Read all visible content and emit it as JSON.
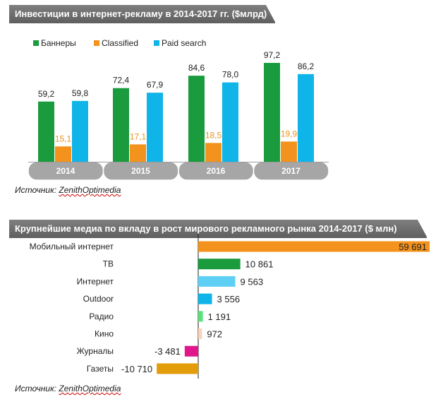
{
  "chart_data": [
    {
      "type": "bar",
      "title": "Инвестиции в интернет-рекламу в 2014-2017 гг. ($млрд)",
      "categories": [
        "2014",
        "2015",
        "2016",
        "2017"
      ],
      "series": [
        {
          "name": "Баннеры",
          "color": "#1a9b3d",
          "values": [
            59.2,
            72.4,
            84.6,
            97.2
          ],
          "labels": [
            "59,2",
            "72,4",
            "84,6",
            "97,2"
          ]
        },
        {
          "name": "Classified",
          "color": "#f3921c",
          "values": [
            15.1,
            17.1,
            18.5,
            19.9
          ],
          "labels": [
            "15,1",
            "17,1",
            "18,5",
            "19,9"
          ]
        },
        {
          "name": "Paid search",
          "color": "#0fb4e9",
          "values": [
            59.8,
            67.9,
            78.0,
            86.2
          ],
          "labels": [
            "59,8",
            "67,9",
            "78,0",
            "86,2"
          ]
        }
      ],
      "legend": "top",
      "ylim": [
        0,
        100
      ],
      "source_prefix": "Источник: ",
      "source_name": "ZenithOptimedia"
    },
    {
      "type": "bar",
      "orientation": "horizontal",
      "title": "Крупнейшие медиа по вкладу в рост мирового рекламного рынка 2014-2017 ($ млн)",
      "categories": [
        "Мобильный интернет",
        "ТВ",
        "Интернет",
        "Outdoor",
        "Радио",
        "Кино",
        "Журналы",
        "Газеты"
      ],
      "values": [
        59691,
        10861,
        9563,
        3556,
        1191,
        972,
        -3481,
        -10710
      ],
      "labels": [
        "59 691",
        "10 861",
        "9 563",
        "3 556",
        "1 191",
        "972",
        "-3 481",
        "-10 710"
      ],
      "colors": [
        "#f3921c",
        "#1a9b3d",
        "#5fd0f5",
        "#0fb4e9",
        "#5ce17a",
        "#f9d2bc",
        "#e0168a",
        "#e39d0b"
      ],
      "xlim": [
        -12000,
        60000
      ],
      "source_prefix": "Источник: ",
      "source_name": "ZenithOptimedia"
    }
  ]
}
